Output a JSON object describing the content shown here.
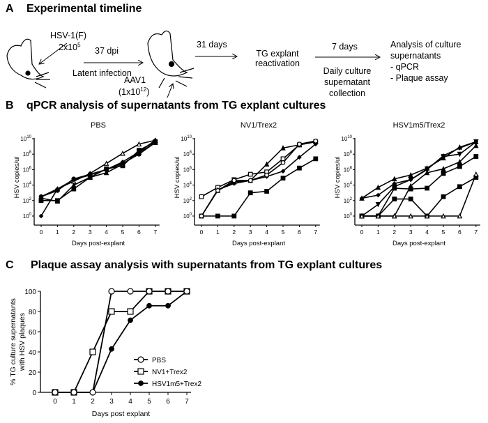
{
  "panel_a": {
    "letter": "A",
    "title": "Experimental timeline",
    "virus": "HSV-1(F)",
    "virus_dose": "2x10",
    "virus_dose_exp": "5",
    "dpi": "37 dpi",
    "latent": "Latent infection",
    "aav": "AAV1",
    "aav_dose": "(1x10",
    "aav_dose_exp": "12",
    "aav_dose_end": ")",
    "days31": "31 days",
    "tg1": "TG explant",
    "tg2": "reactivation",
    "days7": "7 days",
    "daily1": "Daily culture",
    "daily2": "supernatant",
    "daily3": "collection",
    "analysis1": "Analysis of culture",
    "analysis2": "supernatants",
    "item1": "-   qPCR",
    "item2": "-   Plaque assay"
  },
  "panel_b": {
    "letter": "B",
    "title": "qPCR analysis of supernatants from TG explant cultures"
  },
  "panel_c": {
    "letter": "C",
    "title": "Plaque assay analysis with supernatants from TG explant cultures"
  },
  "chart_data": [
    {
      "type": "line",
      "title": "PBS",
      "xlabel": "Days post-explant",
      "ylabel": "HSV copies/ul",
      "yscale": "log10",
      "ylim": [
        1,
        10000000000.0
      ],
      "yticks": [
        "10^0",
        "10^2",
        "10^4",
        "10^6",
        "10^8",
        "10^10"
      ],
      "x": [
        0,
        1,
        2,
        3,
        4,
        5,
        6,
        7
      ],
      "series": [
        {
          "marker": "triangle-open",
          "log10": [
            2.5,
            3.5,
            4.5,
            5.5,
            6.8,
            8.1,
            9.3,
            9.8
          ]
        },
        {
          "marker": "diamond",
          "log10": [
            0,
            3.5,
            4.7,
            5.3,
            6,
            7,
            8.3,
            9.8
          ]
        },
        {
          "marker": "square",
          "log10": [
            2,
            2,
            3.5,
            5,
            6.1,
            6.5,
            8.5,
            9.6
          ]
        },
        {
          "marker": "circle",
          "log10": [
            2.5,
            3.3,
            4.8,
            5.4,
            6,
            6.8,
            8,
            9.5
          ]
        },
        {
          "marker": "triangle",
          "log10": [
            2.3,
            1.9,
            4,
            5,
            5.6,
            6.7,
            8.2,
            9.5
          ]
        }
      ]
    },
    {
      "type": "line",
      "title": "NV1/Trex2",
      "xlabel": "Days post-explant",
      "ylabel": "HSV copies/ul",
      "yscale": "log10",
      "ylim": [
        1,
        10000000000.0
      ],
      "yticks": [
        "10^0",
        "10^2",
        "10^4",
        "10^6",
        "10^8",
        "10^10"
      ],
      "x": [
        0,
        1,
        2,
        3,
        4,
        5,
        6,
        7
      ],
      "series": [
        {
          "marker": "square-open",
          "log10": [
            2.5,
            3.7,
            4.7,
            5.4,
            5.7,
            7.4,
            9.2,
            9.6
          ]
        },
        {
          "marker": "square",
          "log10": [
            0,
            0,
            0,
            3,
            3.2,
            4.9,
            6.2,
            7.4
          ]
        },
        {
          "marker": "triangle",
          "log10": [
            0,
            3.3,
            4.4,
            4.6,
            6.7,
            8.8,
            9.2,
            9.6
          ]
        },
        {
          "marker": "diamond",
          "log10": [
            0,
            3.4,
            4.2,
            4.6,
            5.1,
            5.8,
            7.6,
            9.3
          ]
        },
        {
          "marker": "circle-open",
          "log10": [
            0,
            3.3,
            4.6,
            4.6,
            5.3,
            6.9,
            9.3,
            9.7
          ]
        }
      ]
    },
    {
      "type": "line",
      "title": "HSV1m5/Trex2",
      "xlabel": "Days post-explant",
      "ylabel": "HSV copies/ul",
      "yscale": "log10",
      "ylim": [
        1,
        10000000000.0
      ],
      "yticks": [
        "10^0",
        "10^2",
        "10^4",
        "10^6",
        "10^8",
        "10^10"
      ],
      "x": [
        0,
        1,
        2,
        3,
        4,
        5,
        6,
        7
      ],
      "series": [
        {
          "marker": "triangle",
          "log10": [
            2.3,
            3.7,
            4.8,
            5.3,
            6.2,
            7.5,
            8.9,
            9.6
          ]
        },
        {
          "marker": "diamond",
          "log10": [
            2.3,
            2.7,
            4.2,
            4.7,
            6,
            7.8,
            8.8,
            9.6
          ]
        },
        {
          "marker": "triangle-down",
          "log10": [
            0,
            1.5,
            3.8,
            4.7,
            6.1,
            7.7,
            8,
            9.6
          ]
        },
        {
          "marker": "square",
          "log10": [
            0,
            0,
            3.6,
            3.5,
            3.6,
            5.5,
            6.4,
            7.7
          ]
        },
        {
          "marker": "triangle",
          "log10": [
            0,
            0,
            0,
            3.9,
            5.6,
            6.1,
            7,
            9.1
          ]
        },
        {
          "marker": "square",
          "log10": [
            0,
            0,
            2.2,
            2.2,
            0,
            2.5,
            3.8,
            5
          ]
        },
        {
          "marker": "triangle-open",
          "log10": [
            0,
            0,
            0,
            0,
            0,
            0,
            0,
            5.4
          ]
        }
      ]
    },
    {
      "type": "line",
      "title": "",
      "xlabel": "Days post explant",
      "ylabel": "% TG culture supernatants with HSV plaques",
      "ylabel1": "% TG culture supernatants",
      "ylabel2": "with HSV plaques",
      "ylim": [
        0,
        100
      ],
      "yticks": [
        0,
        20,
        40,
        60,
        80,
        100
      ],
      "x": [
        0,
        1,
        2,
        3,
        4,
        5,
        6,
        7
      ],
      "legend": "bottom-right",
      "series": [
        {
          "name": "PBS",
          "marker": "circle-open",
          "values": [
            0,
            0,
            0,
            100,
            100,
            100,
            100,
            100
          ]
        },
        {
          "name": "NV1+Trex2",
          "marker": "square-open",
          "values": [
            0,
            0,
            40,
            80,
            80,
            100,
            100,
            100
          ]
        },
        {
          "name": "HSV1m5+Trex2",
          "marker": "circle",
          "values": [
            0,
            0,
            0,
            42.9,
            71.4,
            85.7,
            85.7,
            100
          ]
        }
      ]
    }
  ]
}
